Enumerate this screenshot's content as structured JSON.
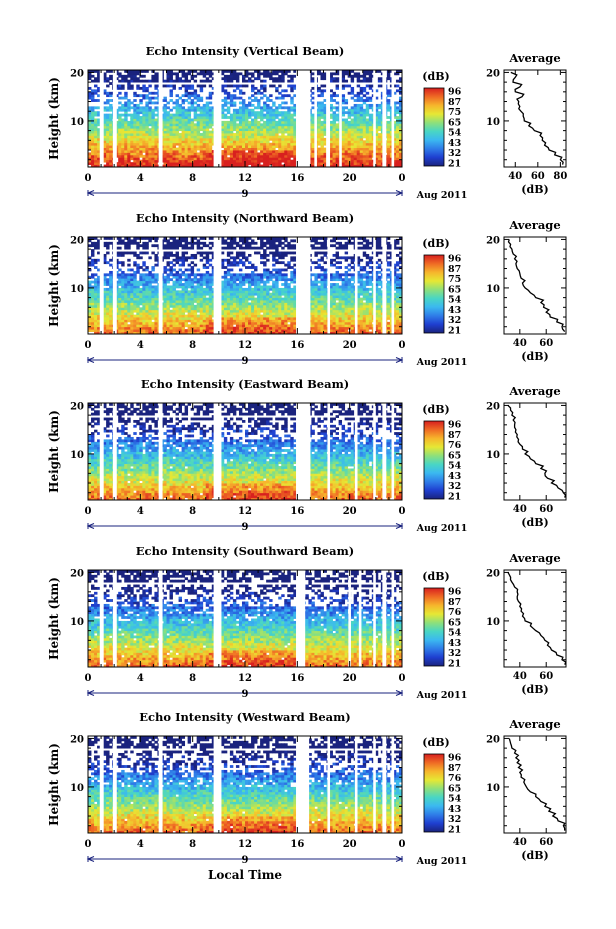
{
  "figure": {
    "xlabel": "Local Time",
    "date_label": "Aug 2011",
    "day_label": "9"
  },
  "colorbar": {
    "unit": "(dB)",
    "tick_labels_panels_1_2": [
      "96",
      "87",
      "75",
      "65",
      "54",
      "43",
      "32",
      "21"
    ],
    "tick_labels_panels_3_5": [
      "96",
      "87",
      "76",
      "65",
      "54",
      "43",
      "32",
      "21"
    ],
    "colors": [
      "#1a237e",
      "#1f3fd0",
      "#2f7de8",
      "#3bb8f0",
      "#49d6c4",
      "#8fe07a",
      "#e6e834",
      "#f6b52c",
      "#ef6a24",
      "#d81f1f"
    ]
  },
  "chart_data": [
    {
      "type": "heatmap",
      "title": "Echo Intensity (Vertical Beam)",
      "ylabel": "Height (km)",
      "x_ticks": [
        "0",
        "4",
        "8",
        "12",
        "16",
        "20",
        "0"
      ],
      "y_ticks": [
        "10",
        "20"
      ],
      "xlim": [
        0,
        24
      ],
      "ylim": [
        0.5,
        20.5
      ],
      "gaps_hours": [
        [
          0.9,
          1.2
        ],
        [
          1.9,
          2.2
        ],
        [
          5.4,
          5.7
        ],
        [
          9.6,
          10.2
        ],
        [
          15.9,
          17.0
        ],
        [
          17.3,
          17.5
        ],
        [
          18.2,
          18.5
        ],
        [
          19.2,
          19.4
        ],
        [
          21.8,
          22.0
        ],
        [
          22.5,
          22.8
        ],
        [
          23.2,
          23.4
        ]
      ],
      "colorbar_ticks": [
        96,
        87,
        75,
        65,
        54,
        43,
        32,
        21
      ],
      "profile": {
        "title": "Average",
        "xlabel": "(dB)",
        "x_ticks": [
          "40",
          "60",
          "80"
        ],
        "xlim": [
          30,
          85
        ],
        "heights": [
          1,
          2,
          3,
          4,
          5,
          6,
          7,
          8,
          9,
          10,
          11,
          12,
          13,
          14,
          15,
          16,
          17,
          18,
          19,
          20
        ],
        "values": [
          82,
          80,
          75,
          70,
          66,
          64,
          62,
          57,
          52,
          48,
          47,
          45,
          44,
          43,
          46,
          40,
          44,
          38,
          40,
          36
        ]
      }
    },
    {
      "type": "heatmap",
      "title": "Echo Intensity (Northward Beam)",
      "ylabel": "Height (km)",
      "x_ticks": [
        "0",
        "4",
        "8",
        "12",
        "16",
        "20",
        "0"
      ],
      "y_ticks": [
        "10",
        "20"
      ],
      "xlim": [
        0,
        24
      ],
      "ylim": [
        0.5,
        20.5
      ],
      "gaps_hours": [
        [
          0.9,
          1.2
        ],
        [
          1.9,
          2.2
        ],
        [
          5.4,
          5.7
        ],
        [
          9.6,
          10.2
        ],
        [
          15.9,
          17.0
        ],
        [
          18.3,
          18.5
        ],
        [
          20.4,
          20.6
        ],
        [
          21.8,
          22.0
        ],
        [
          22.5,
          22.8
        ],
        [
          23.2,
          23.4
        ]
      ],
      "colorbar_ticks": [
        96,
        87,
        75,
        65,
        54,
        43,
        32,
        21
      ],
      "profile": {
        "title": "Average",
        "xlabel": "(dB)",
        "x_ticks": [
          "40",
          "60"
        ],
        "xlim": [
          28,
          75
        ],
        "heights": [
          1,
          2,
          3,
          4,
          5,
          6,
          7,
          8,
          9,
          10,
          11,
          12,
          13,
          14,
          15,
          16,
          17,
          18,
          19,
          20
        ],
        "values": [
          74,
          72,
          68,
          63,
          60,
          58,
          56,
          52,
          48,
          44,
          42,
          41,
          40,
          38,
          37,
          36,
          35,
          34,
          33,
          32
        ]
      }
    },
    {
      "type": "heatmap",
      "title": "Echo Intensity (Eastward Beam)",
      "ylabel": "Height (km)",
      "x_ticks": [
        "0",
        "4",
        "8",
        "12",
        "16",
        "20",
        "0"
      ],
      "y_ticks": [
        "10",
        "20"
      ],
      "xlim": [
        0,
        24
      ],
      "ylim": [
        0.5,
        20.5
      ],
      "gaps_hours": [
        [
          0.9,
          1.2
        ],
        [
          1.9,
          2.2
        ],
        [
          5.4,
          5.7
        ],
        [
          9.6,
          10.2
        ],
        [
          15.9,
          17.0
        ],
        [
          18.3,
          18.5
        ],
        [
          20.4,
          20.6
        ],
        [
          21.8,
          22.0
        ],
        [
          22.5,
          22.8
        ],
        [
          23.2,
          23.4
        ]
      ],
      "colorbar_ticks": [
        96,
        87,
        76,
        65,
        54,
        43,
        32,
        21
      ],
      "profile": {
        "title": "Average",
        "xlabel": "(dB)",
        "x_ticks": [
          "40",
          "60"
        ],
        "xlim": [
          28,
          75
        ],
        "heights": [
          1,
          2,
          3,
          4,
          5,
          6,
          7,
          8,
          9,
          10,
          11,
          12,
          13,
          14,
          15,
          16,
          17,
          18,
          19,
          20
        ],
        "values": [
          74,
          73,
          69,
          64,
          61,
          59,
          56,
          52,
          48,
          44,
          42,
          40,
          39,
          38,
          37,
          36,
          35,
          34,
          33,
          31
        ]
      }
    },
    {
      "type": "heatmap",
      "title": "Echo Intensity (Southward Beam)",
      "ylabel": "Height (km)",
      "x_ticks": [
        "0",
        "4",
        "8",
        "12",
        "16",
        "20",
        "0"
      ],
      "y_ticks": [
        "10",
        "20"
      ],
      "xlim": [
        0,
        24
      ],
      "ylim": [
        0.5,
        20.5
      ],
      "gaps_hours": [
        [
          0.9,
          1.2
        ],
        [
          1.9,
          2.2
        ],
        [
          5.4,
          5.7
        ],
        [
          9.6,
          10.2
        ],
        [
          15.9,
          16.6
        ],
        [
          19.9,
          20.1
        ],
        [
          20.7,
          20.9
        ],
        [
          21.8,
          22.0
        ],
        [
          22.5,
          22.8
        ],
        [
          23.2,
          23.4
        ]
      ],
      "colorbar_ticks": [
        96,
        87,
        76,
        65,
        54,
        43,
        32,
        21
      ],
      "profile": {
        "title": "Average",
        "xlabel": "(dB)",
        "x_ticks": [
          "40",
          "60"
        ],
        "xlim": [
          28,
          75
        ],
        "heights": [
          1,
          2,
          3,
          4,
          5,
          6,
          7,
          8,
          9,
          10,
          11,
          12,
          13,
          14,
          15,
          16,
          17,
          18,
          19,
          20
        ],
        "values": [
          74,
          72,
          68,
          64,
          61,
          59,
          56,
          52,
          48,
          44,
          42,
          41,
          40,
          39,
          38,
          38,
          36,
          34,
          33,
          31
        ]
      }
    },
    {
      "type": "heatmap",
      "title": "Echo Intensity (Westward Beam)",
      "ylabel": "Height (km)",
      "x_ticks": [
        "0",
        "4",
        "8",
        "12",
        "16",
        "20",
        "0"
      ],
      "y_ticks": [
        "10",
        "20"
      ],
      "xlim": [
        0,
        24
      ],
      "ylim": [
        0.5,
        20.5
      ],
      "gaps_hours": [
        [
          0.9,
          1.2
        ],
        [
          1.9,
          2.2
        ],
        [
          5.4,
          5.7
        ],
        [
          9.6,
          10.2
        ],
        [
          15.9,
          16.9
        ],
        [
          18.3,
          18.5
        ],
        [
          20.4,
          20.6
        ],
        [
          21.8,
          22.0
        ],
        [
          22.5,
          22.8
        ],
        [
          23.2,
          23.4
        ]
      ],
      "colorbar_ticks": [
        96,
        87,
        76,
        65,
        54,
        43,
        32,
        21
      ],
      "profile": {
        "title": "Average",
        "xlabel": "(dB)",
        "x_ticks": [
          "40",
          "60"
        ],
        "xlim": [
          28,
          75
        ],
        "heights": [
          1,
          2,
          3,
          4,
          5,
          6,
          7,
          8,
          9,
          10,
          11,
          12,
          13,
          14,
          15,
          16,
          17,
          18,
          19,
          20
        ],
        "values": [
          74,
          73,
          69,
          65,
          62,
          59,
          56,
          52,
          48,
          45,
          43,
          41,
          40,
          39,
          38,
          37,
          36,
          34,
          33,
          32
        ]
      }
    }
  ]
}
